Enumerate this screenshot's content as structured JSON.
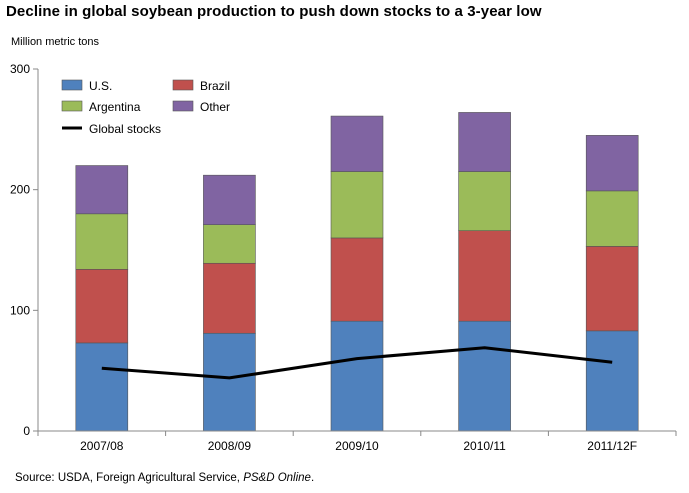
{
  "title": "Decline in global soybean production to push down stocks to a 3-year low",
  "y_unit_label": "Million metric tons",
  "source": {
    "prefix": "Source: USDA, Foreign Agricultural Service, ",
    "italic": "PS&D Online",
    "suffix": "."
  },
  "chart_data": {
    "type": "bar",
    "stacked": true,
    "categories": [
      "2007/08",
      "2008/09",
      "2009/10",
      "2010/11",
      "2011/12F"
    ],
    "series": [
      {
        "name": "U.S.",
        "color": "#4f81bd",
        "values": [
          73,
          81,
          91,
          91,
          83
        ]
      },
      {
        "name": "Brazil",
        "color": "#c0504d",
        "values": [
          61,
          58,
          69,
          75,
          70
        ]
      },
      {
        "name": "Argentina",
        "color": "#9bbb59",
        "values": [
          46,
          32,
          55,
          49,
          46
        ]
      },
      {
        "name": "Other",
        "color": "#8064a2",
        "values": [
          40,
          41,
          46,
          49,
          46
        ]
      }
    ],
    "line_series": {
      "name": "Global stocks",
      "color": "#000000",
      "values": [
        52,
        44,
        60,
        69,
        57
      ]
    },
    "ylim": [
      0,
      300
    ],
    "yticks": [
      "0",
      "100",
      "200",
      "300"
    ],
    "legend_position": "top-left",
    "grid": false
  }
}
